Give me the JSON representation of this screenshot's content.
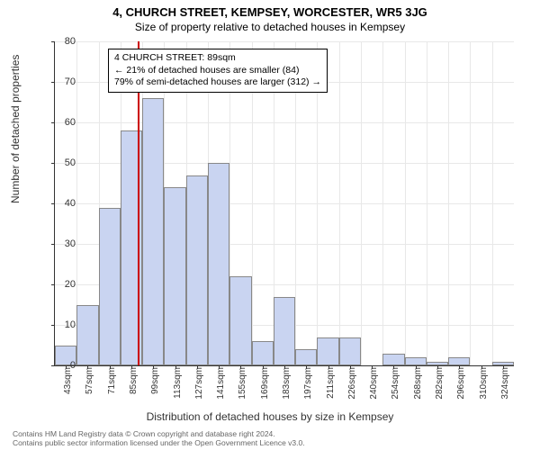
{
  "title": "4, CHURCH STREET, KEMPSEY, WORCESTER, WR5 3JG",
  "subtitle": "Size of property relative to detached houses in Kempsey",
  "ylabel": "Number of detached properties",
  "xlabel": "Distribution of detached houses by size in Kempsey",
  "chart": {
    "type": "histogram",
    "ylim": [
      0,
      80
    ],
    "ytick_step": 10,
    "bar_fill": "#c9d4f1",
    "bar_border": "#888888",
    "background": "#ffffff",
    "grid_color": "#e8e8e8",
    "xtick_labels": [
      "43sqm",
      "57sqm",
      "71sqm",
      "85sqm",
      "99sqm",
      "113sqm",
      "127sqm",
      "141sqm",
      "155sqm",
      "169sqm",
      "183sqm",
      "197sqm",
      "211sqm",
      "226sqm",
      "240sqm",
      "254sqm",
      "268sqm",
      "282sqm",
      "296sqm",
      "310sqm",
      "324sqm"
    ],
    "values": [
      5,
      15,
      39,
      58,
      66,
      44,
      47,
      50,
      22,
      6,
      17,
      4,
      7,
      7,
      0,
      3,
      2,
      1,
      2,
      0,
      1
    ],
    "marker": {
      "position_sqm": 89,
      "color": "#cc0000"
    }
  },
  "annotation": {
    "line1": "4 CHURCH STREET: 89sqm",
    "line2": "← 21% of detached houses are smaller (84)",
    "line3": "79% of semi-detached houses are larger (312) →"
  },
  "footer": {
    "line1": "Contains HM Land Registry data © Crown copyright and database right 2024.",
    "line2": "Contains public sector information licensed under the Open Government Licence v3.0."
  }
}
